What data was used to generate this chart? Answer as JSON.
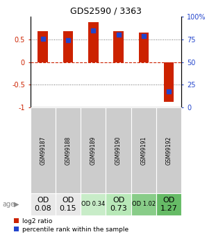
{
  "title": "GDS2590 / 3363",
  "samples": [
    "GSM99187",
    "GSM99188",
    "GSM99189",
    "GSM99190",
    "GSM99191",
    "GSM99192"
  ],
  "log2_ratios": [
    0.68,
    0.68,
    0.88,
    0.68,
    0.65,
    -0.88
  ],
  "percentile_ranks": [
    76,
    74,
    85,
    80,
    79,
    18
  ],
  "bar_color": "#cc2200",
  "dot_color": "#2244cc",
  "ylim": [
    -1,
    1
  ],
  "yticks_left": [
    -1,
    -0.5,
    0,
    0.5
  ],
  "yticks_right": [
    0,
    25,
    50,
    75,
    100
  ],
  "dotted_lines_dotted": [
    -0.5,
    0.5
  ],
  "dotted_lines_dashed": [
    0
  ],
  "zero_line_color": "#cc2200",
  "grid_color": "#555555",
  "age_values": [
    "OD\n0.08",
    "OD\n0.15",
    "OD 0.34",
    "OD\n0.73",
    "OD 1.02",
    "OD\n1.27"
  ],
  "age_bg_colors": [
    "#e8e8e8",
    "#e8e8e8",
    "#c8ecc8",
    "#b8e8b8",
    "#88cc88",
    "#66bb66"
  ],
  "age_font_sizes": [
    8,
    8,
    6,
    8,
    6,
    8
  ],
  "sample_bg_color": "#cccccc",
  "legend_red_label": "log2 ratio",
  "legend_blue_label": "percentile rank within the sample",
  "bar_width": 0.4
}
